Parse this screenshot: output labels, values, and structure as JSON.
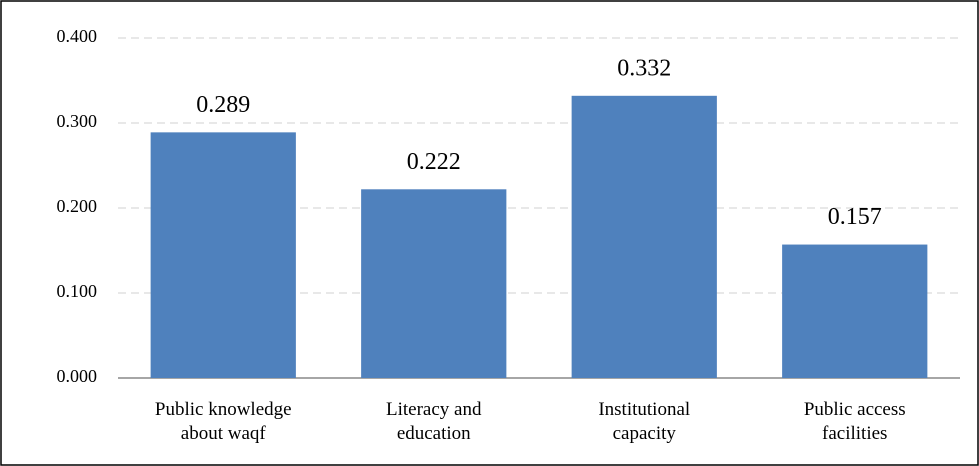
{
  "chart_data": {
    "type": "bar",
    "categories": [
      "Public knowledge about waqf",
      "Literacy and education",
      "Institutional capacity",
      "Public access facilities"
    ],
    "values": [
      0.289,
      0.222,
      0.332,
      0.157
    ],
    "color": "#4f81bd",
    "ylim": [
      0,
      0.4
    ],
    "yticks": [
      {
        "value": 0,
        "label": "0.000"
      },
      {
        "value": 0.1,
        "label": "0.100"
      },
      {
        "value": 0.2,
        "label": "0.200"
      },
      {
        "value": 0.3,
        "label": "0.300"
      },
      {
        "value": 0.4,
        "label": "0.400"
      }
    ],
    "grid": true
  }
}
